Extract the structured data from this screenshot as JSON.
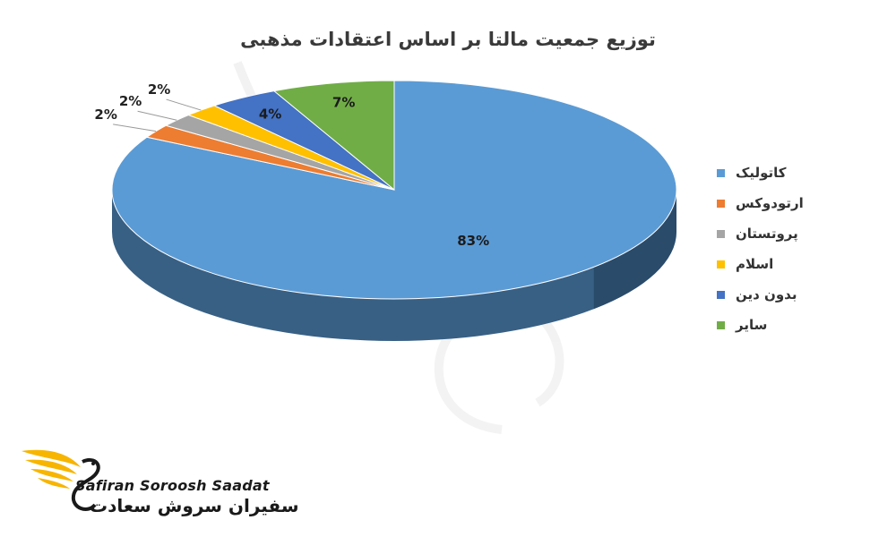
{
  "chart_data": {
    "type": "pie",
    "title": "توزیع جمعیت مالتا بر اساس اعتقادات مذهبی",
    "categories": [
      "کاتولیک",
      "ارتودوکس",
      "پروتستان",
      "اسلام",
      "بدون دین",
      "سایر"
    ],
    "values": [
      83,
      2,
      2,
      2,
      4,
      7
    ],
    "data_labels": [
      "83%",
      "2%",
      "2%",
      "2%",
      "4%",
      "7%"
    ],
    "colors": [
      "#5b9bd5",
      "#ed7d31",
      "#a5a5a5",
      "#ffc000",
      "#4472c4",
      "#70ad47"
    ],
    "legend_position": "right",
    "style": "3d"
  },
  "brand": {
    "name_en": "Safiran Soroosh Saadat",
    "name_fa": "سفیران سروش سعادت",
    "logo_colors": [
      "#f7b500",
      "#1a1a1a"
    ]
  }
}
